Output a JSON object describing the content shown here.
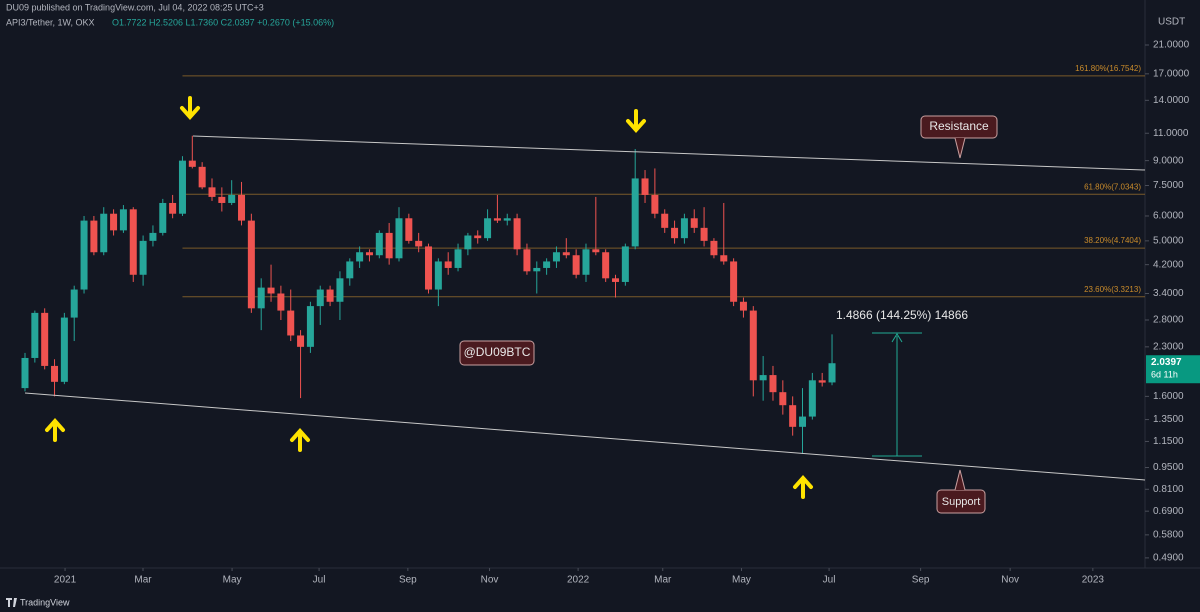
{
  "header": {
    "publisher": "DU09 published on TradingView.com, Jul 04, 2022 08:25 UTC+3",
    "symbol": "API3/Tether, 1W, OKX",
    "ohlc": "O1.7722 H2.5206 L1.7360 C2.0397 +0.2670 (+15.06%)",
    "brand": "TradingView"
  },
  "chart_data": {
    "type": "candlestick",
    "y_axis_unit": "USDT",
    "log_scale": true,
    "up_color": "#26a69a",
    "down_color": "#ef5350",
    "x": [
      0,
      1,
      2,
      3,
      4,
      5,
      6,
      7,
      8,
      9,
      10,
      11,
      12,
      13,
      14,
      15,
      16,
      17,
      18,
      19,
      20,
      21,
      22,
      23,
      24,
      25,
      26,
      27,
      28,
      29,
      30,
      31,
      32,
      33,
      34,
      35,
      36,
      37,
      38,
      39,
      40,
      41,
      42,
      43,
      44,
      45,
      46,
      47,
      48,
      49,
      50,
      51,
      52,
      53,
      54,
      55,
      56,
      57,
      58,
      59,
      60,
      61,
      62,
      63,
      64,
      65,
      66,
      67,
      68,
      69,
      70,
      71,
      72,
      73,
      74,
      75,
      76,
      77,
      78,
      79,
      80,
      81,
      82
    ],
    "open": [
      1.7,
      2.12,
      2.95,
      2.0,
      1.78,
      2.85,
      3.5,
      5.8,
      4.6,
      6.1,
      5.4,
      6.3,
      3.9,
      5.0,
      5.3,
      6.6,
      6.1,
      9.0,
      8.6,
      7.4,
      6.9,
      6.6,
      7.0,
      5.8,
      3.05,
      3.55,
      3.4,
      3.0,
      2.5,
      2.3,
      3.1,
      3.5,
      3.2,
      3.8,
      4.3,
      4.6,
      4.5,
      5.3,
      4.4,
      5.9,
      5.0,
      4.8,
      3.5,
      4.3,
      4.1,
      4.7,
      5.2,
      5.1,
      5.9,
      5.8,
      5.9,
      4.7,
      4.0,
      4.1,
      4.3,
      4.6,
      4.5,
      3.9,
      4.7,
      4.6,
      3.8,
      3.7,
      4.8,
      7.9,
      7.0,
      6.1,
      5.5,
      5.1,
      5.9,
      5.5,
      5.0,
      4.5,
      4.3,
      3.2,
      3.0,
      1.8,
      1.87,
      1.65,
      1.5,
      1.28,
      1.38,
      1.8,
      1.7722
    ],
    "high": [
      2.2,
      3.0,
      3.05,
      2.1,
      2.95,
      3.6,
      6.0,
      6.0,
      6.4,
      6.3,
      6.5,
      6.4,
      5.2,
      5.6,
      6.8,
      7.0,
      9.3,
      10.8,
      8.9,
      7.9,
      7.4,
      7.8,
      7.7,
      6.1,
      3.8,
      4.2,
      3.6,
      3.5,
      2.6,
      3.2,
      3.6,
      3.6,
      4.0,
      4.4,
      4.8,
      4.7,
      5.4,
      5.7,
      6.4,
      6.1,
      5.3,
      4.9,
      4.4,
      4.6,
      4.9,
      5.3,
      5.4,
      6.3,
      7.0,
      6.1,
      6.1,
      4.9,
      4.3,
      4.4,
      4.8,
      5.1,
      4.7,
      4.9,
      6.9,
      4.7,
      3.9,
      4.9,
      9.8,
      8.4,
      8.5,
      6.3,
      5.8,
      6.1,
      6.3,
      6.4,
      5.1,
      6.6,
      4.4,
      3.3,
      3.1,
      2.15,
      2.0,
      1.8,
      1.6,
      1.7,
      1.9,
      1.9,
      2.5206
    ],
    "low": [
      1.66,
      2.05,
      1.95,
      1.6,
      1.75,
      2.4,
      3.4,
      4.5,
      4.5,
      5.2,
      5.3,
      3.7,
      3.6,
      4.8,
      5.2,
      5.9,
      6.0,
      8.5,
      7.3,
      6.7,
      6.2,
      6.5,
      5.6,
      2.95,
      2.6,
      3.2,
      2.8,
      2.4,
      1.58,
      2.2,
      2.7,
      3.1,
      2.8,
      3.6,
      4.1,
      4.3,
      4.4,
      4.2,
      4.3,
      4.9,
      4.6,
      3.4,
      3.1,
      3.9,
      4.0,
      4.5,
      4.9,
      5.0,
      5.7,
      5.6,
      4.5,
      3.9,
      3.4,
      3.9,
      4.1,
      4.4,
      3.8,
      3.7,
      4.5,
      3.7,
      3.3,
      3.6,
      4.7,
      6.6,
      5.9,
      5.3,
      4.9,
      4.9,
      5.3,
      4.8,
      4.4,
      4.2,
      3.1,
      2.85,
      1.6,
      1.55,
      1.55,
      1.4,
      1.2,
      1.05,
      1.35,
      1.72,
      1.736
    ],
    "close": [
      2.12,
      2.95,
      2.0,
      1.78,
      2.85,
      3.5,
      5.8,
      4.6,
      6.1,
      5.4,
      6.3,
      3.9,
      5.0,
      5.3,
      6.6,
      6.1,
      9.0,
      8.6,
      7.4,
      6.9,
      6.6,
      7.0,
      5.8,
      3.05,
      3.55,
      3.4,
      3.0,
      2.5,
      2.3,
      3.1,
      3.5,
      3.2,
      3.8,
      4.3,
      4.6,
      4.5,
      5.3,
      4.4,
      5.9,
      5.0,
      4.8,
      3.5,
      4.3,
      4.1,
      4.7,
      5.2,
      5.1,
      5.9,
      5.8,
      5.9,
      4.7,
      4.0,
      4.1,
      4.3,
      4.6,
      4.5,
      3.9,
      4.7,
      4.6,
      3.8,
      3.7,
      4.8,
      7.9,
      7.0,
      6.1,
      5.5,
      5.1,
      5.9,
      5.5,
      5.0,
      4.5,
      4.3,
      3.2,
      3.0,
      1.8,
      1.87,
      1.65,
      1.5,
      1.28,
      1.38,
      1.8,
      1.77,
      2.0397
    ],
    "last_price_label": "2.0397",
    "countdown": "6d 11h",
    "ylim": [
      0.455,
      29.2
    ],
    "yticks": [
      {
        "value": 21,
        "label": "21.0000"
      },
      {
        "value": 17,
        "label": "17.0000"
      },
      {
        "value": 14,
        "label": "14.0000"
      },
      {
        "value": 11,
        "label": "11.0000"
      },
      {
        "value": 9,
        "label": "9.0000"
      },
      {
        "value": 7.5,
        "label": "7.5000"
      },
      {
        "value": 6,
        "label": "6.0000"
      },
      {
        "value": 5,
        "label": "5.0000"
      },
      {
        "value": 4.2,
        "label": "4.2000"
      },
      {
        "value": 3.4,
        "label": "3.4000"
      },
      {
        "value": 2.8,
        "label": "2.8000"
      },
      {
        "value": 2.3,
        "label": "2.3000"
      },
      {
        "value": 1.6,
        "label": "1.6000"
      },
      {
        "value": 1.35,
        "label": "1.3500"
      },
      {
        "value": 1.15,
        "label": "1.1500"
      },
      {
        "value": 0.95,
        "label": "0.9500"
      },
      {
        "value": 0.81,
        "label": "0.8100"
      },
      {
        "value": 0.69,
        "label": "0.6900"
      },
      {
        "value": 0.58,
        "label": "0.5800"
      },
      {
        "value": 0.49,
        "label": "0.4900"
      }
    ],
    "xlim": [
      -2.54,
      113.8
    ],
    "xticks": [
      {
        "value": 4.07,
        "label": "2021"
      },
      {
        "value": 11.99,
        "label": "Mar"
      },
      {
        "value": 21.04,
        "label": "May"
      },
      {
        "value": 29.88,
        "label": "Jul"
      },
      {
        "value": 38.9,
        "label": "Sep"
      },
      {
        "value": 47.2,
        "label": "Nov"
      },
      {
        "value": 56.2,
        "label": "2022"
      },
      {
        "value": 64.8,
        "label": "Mar"
      },
      {
        "value": 72.8,
        "label": "May"
      },
      {
        "value": 81.7,
        "label": "Jul"
      },
      {
        "value": 91.0,
        "label": "Sep"
      },
      {
        "value": 100.1,
        "label": "Nov"
      },
      {
        "value": 108.5,
        "label": "2023"
      }
    ],
    "fib_levels": [
      {
        "value": 16.7542,
        "label": "161.80%(16.7542)"
      },
      {
        "value": 7.0343,
        "label": "61.80%(7.0343)"
      },
      {
        "value": 4.7404,
        "label": "38.20%(4.7404)"
      },
      {
        "value": 3.3213,
        "label": "23.60%(3.3213)"
      }
    ],
    "annotations": {
      "resistance": "Resistance",
      "support": "Support",
      "watermark": "@DU09BTC",
      "measure": "1.4866 (144.25%) 14866"
    }
  }
}
